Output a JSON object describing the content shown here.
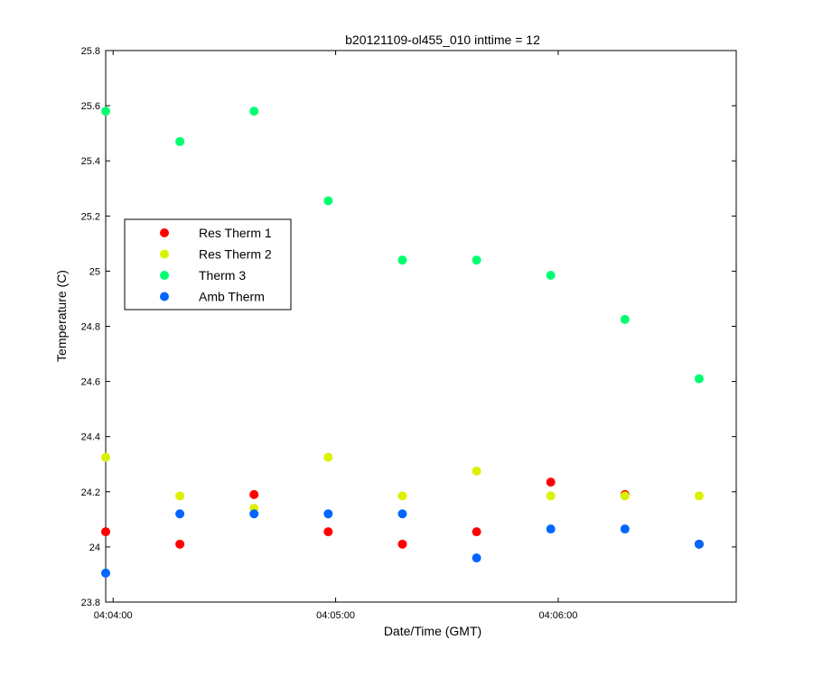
{
  "chart_data": {
    "type": "scatter",
    "title": "b20121109-ol455_010 inttime = 12",
    "xlabel": "Date/Time (GMT)",
    "ylabel": "Temperature (C)",
    "xlim": [
      "04:03:58",
      "04:06:48"
    ],
    "ylim": [
      23.8,
      25.8
    ],
    "xticks": [
      "04:04:00",
      "04:05:00",
      "04:06:00"
    ],
    "yticks": [
      23.8,
      24,
      24.2,
      24.4,
      24.6,
      24.8,
      25,
      25.2,
      25.4,
      25.6,
      25.8
    ],
    "x": [
      "04:03:58",
      "04:04:18",
      "04:04:38",
      "04:04:58",
      "04:05:18",
      "04:05:38",
      "04:05:58",
      "04:06:18",
      "04:06:38"
    ],
    "grid": false,
    "legend_position": "left",
    "series": [
      {
        "name": "Res Therm 1",
        "color": "#ff0000",
        "values": [
          24.055,
          24.01,
          24.19,
          24.055,
          24.01,
          24.055,
          24.235,
          24.19,
          24.01
        ]
      },
      {
        "name": "Res Therm 2",
        "color": "#d9f200",
        "values": [
          24.325,
          24.185,
          24.14,
          24.325,
          24.185,
          24.275,
          24.185,
          24.185,
          24.185
        ]
      },
      {
        "name": "Therm 3",
        "color": "#00ff70",
        "values": [
          25.58,
          25.47,
          25.58,
          25.255,
          25.04,
          25.04,
          24.985,
          24.825,
          24.61
        ]
      },
      {
        "name": "Amb Therm",
        "color": "#0066ff",
        "values": [
          23.905,
          24.12,
          24.12,
          24.12,
          24.12,
          23.96,
          24.065,
          24.065,
          24.01
        ]
      }
    ]
  }
}
